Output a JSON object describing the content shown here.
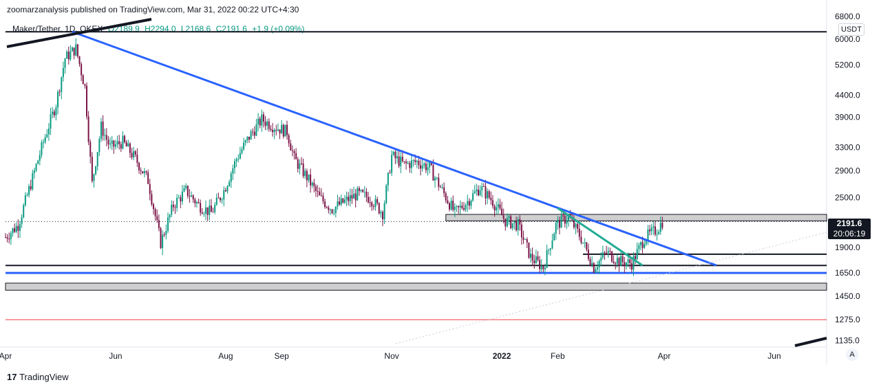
{
  "header": {
    "published": "zoomarzanalysis published on TradingView.com, Mar 31, 2022 00:22 UTC+4:30"
  },
  "legend": {
    "symbol": "Maker/Tether, 1D, OKEX",
    "open": "O2189.9",
    "high": "H2294.0",
    "low": "L2168.6",
    "close": "C2191.6",
    "change": "+1.9 (+0.09%)"
  },
  "axis": {
    "currency": "USDT",
    "auto_label": "A",
    "last_price": "2191.6",
    "countdown": "20:06:19"
  },
  "footer": {
    "brand": "TradingView"
  },
  "colors": {
    "up": "#089981",
    "down": "#7b1346",
    "trendline": "#2962ff",
    "green_line": "#22ab94",
    "support_blue": "#2962ff",
    "red_line": "#f23645",
    "zone": "#cfcfcf"
  },
  "chart_data": {
    "type": "candlestick",
    "scale": "log",
    "ylim": [
      1100,
      6800
    ],
    "y_ticks": [
      6800,
      6000,
      5200,
      4400,
      3900,
      3300,
      2900,
      2500,
      2191.6,
      1900,
      1650,
      1450,
      1275,
      1135
    ],
    "x_ticks": [
      "Apr",
      "Jun",
      "Aug",
      "Sep",
      "Nov",
      "2022",
      "Feb",
      "Apr",
      "Jun"
    ],
    "x_tick_dates": [
      "2021-04-01",
      "2021-06-01",
      "2021-08-01",
      "2021-09-01",
      "2021-11-01",
      "2022-01-01",
      "2022-02-01",
      "2022-04-01",
      "2022-06-01"
    ],
    "last_close": 2191.6,
    "horizontal_levels": [
      {
        "price": 6250,
        "color": "black"
      },
      {
        "price": 1720,
        "color": "black"
      },
      {
        "price": 1650,
        "color": "blue"
      },
      {
        "price": 1275,
        "color": "red"
      },
      {
        "price": 1830,
        "color": "black"
      }
    ],
    "zones": [
      {
        "from": 2200,
        "to": 2280
      },
      {
        "from": 1500,
        "to": 1560
      }
    ],
    "trendlines": [
      {
        "from": [
          "2021-05-08",
          6250
        ],
        "to": [
          "2022-04-30",
          1720
        ],
        "color": "blue"
      },
      {
        "from": [
          "2022-02-01",
          2360
        ],
        "to": [
          "2022-03-20",
          1720
        ],
        "color": "green"
      }
    ],
    "series_close": [
      [
        "2021-04-01",
        2010
      ],
      [
        "2021-04-08",
        2150
      ],
      [
        "2021-04-15",
        2700
      ],
      [
        "2021-04-22",
        3400
      ],
      [
        "2021-04-29",
        4200
      ],
      [
        "2021-05-04",
        5400
      ],
      [
        "2021-05-10",
        5700
      ],
      [
        "2021-05-15",
        4600
      ],
      [
        "2021-05-19",
        2700
      ],
      [
        "2021-05-24",
        3700
      ],
      [
        "2021-05-29",
        3300
      ],
      [
        "2021-06-05",
        3400
      ],
      [
        "2021-06-12",
        3100
      ],
      [
        "2021-06-19",
        2750
      ],
      [
        "2021-06-26",
        1950
      ],
      [
        "2021-07-03",
        2400
      ],
      [
        "2021-07-10",
        2600
      ],
      [
        "2021-07-17",
        2400
      ],
      [
        "2021-07-24",
        2300
      ],
      [
        "2021-07-31",
        2600
      ],
      [
        "2021-08-07",
        3100
      ],
      [
        "2021-08-14",
        3500
      ],
      [
        "2021-08-21",
        3850
      ],
      [
        "2021-08-28",
        3700
      ],
      [
        "2021-09-04",
        3600
      ],
      [
        "2021-09-08",
        3100
      ],
      [
        "2021-09-15",
        2800
      ],
      [
        "2021-09-22",
        2500
      ],
      [
        "2021-09-29",
        2350
      ],
      [
        "2021-10-06",
        2450
      ],
      [
        "2021-10-13",
        2550
      ],
      [
        "2021-10-20",
        2500
      ],
      [
        "2021-10-27",
        2300
      ],
      [
        "2021-11-01",
        3150
      ],
      [
        "2021-11-08",
        3000
      ],
      [
        "2021-11-15",
        3050
      ],
      [
        "2021-11-22",
        2950
      ],
      [
        "2021-11-29",
        2600
      ],
      [
        "2021-12-06",
        2300
      ],
      [
        "2021-12-13",
        2450
      ],
      [
        "2021-12-20",
        2650
      ],
      [
        "2021-12-27",
        2450
      ],
      [
        "2022-01-03",
        2200
      ],
      [
        "2022-01-10",
        2150
      ],
      [
        "2022-01-17",
        1800
      ],
      [
        "2022-01-24",
        1700
      ],
      [
        "2022-01-31",
        2150
      ],
      [
        "2022-02-07",
        2250
      ],
      [
        "2022-02-14",
        2000
      ],
      [
        "2022-02-21",
        1700
      ],
      [
        "2022-02-28",
        1850
      ],
      [
        "2022-03-07",
        1760
      ],
      [
        "2022-03-14",
        1740
      ],
      [
        "2022-03-21",
        2000
      ],
      [
        "2022-03-28",
        2100
      ],
      [
        "2022-03-31",
        2191.6
      ]
    ]
  }
}
